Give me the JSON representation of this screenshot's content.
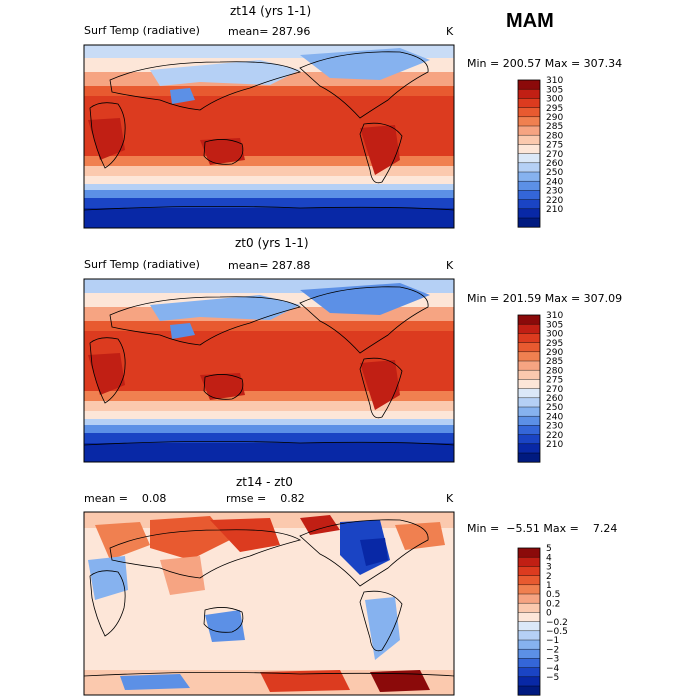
{
  "season": "MAM",
  "chart_data": [
    {
      "type": "heatmap",
      "title": "zt14 (yrs 1-1)",
      "field_label": "Surf Temp (radiative)",
      "mean_text": "mean= 287.96",
      "units": "K",
      "minmax_text": "Min = 200.57 Max = 307.34",
      "min": 200.57,
      "max": 307.34,
      "mean": 287.96,
      "colorbar_levels": [
        "310",
        "305",
        "300",
        "295",
        "290",
        "285",
        "280",
        "275",
        "270",
        "260",
        "250",
        "240",
        "230",
        "220",
        "210"
      ],
      "colorbar_colors": [
        "#8b0a0a",
        "#c11f14",
        "#dc3b1f",
        "#e85a30",
        "#f08050",
        "#f6a482",
        "#fbc9ae",
        "#fde6d8",
        "#dbe8f8",
        "#b5d0f5",
        "#86b2ef",
        "#5c90e6",
        "#3466d8",
        "#1a44c4",
        "#0828a6",
        "#001a80"
      ]
    },
    {
      "type": "heatmap",
      "title": "zt0 (yrs 1-1)",
      "field_label": "Surf Temp (radiative)",
      "mean_text": "mean= 287.88",
      "units": "K",
      "minmax_text": "Min = 201.59 Max = 307.09",
      "min": 201.59,
      "max": 307.09,
      "mean": 287.88,
      "colorbar_levels": [
        "310",
        "305",
        "300",
        "295",
        "290",
        "285",
        "280",
        "275",
        "270",
        "260",
        "250",
        "240",
        "230",
        "220",
        "210"
      ],
      "colorbar_colors": [
        "#8b0a0a",
        "#c11f14",
        "#dc3b1f",
        "#e85a30",
        "#f08050",
        "#f6a482",
        "#fbc9ae",
        "#fde6d8",
        "#dbe8f8",
        "#b5d0f5",
        "#86b2ef",
        "#5c90e6",
        "#3466d8",
        "#1a44c4",
        "#0828a6",
        "#001a80"
      ]
    },
    {
      "type": "heatmap",
      "title": "zt14 - zt0",
      "mean_text": "mean =    0.08",
      "rmse_text": "rmse =    0.82",
      "units": "K",
      "minmax_text": "Min =  −5.51 Max =    7.24",
      "min": -5.51,
      "max": 7.24,
      "mean": 0.08,
      "rmse": 0.82,
      "colorbar_levels": [
        "5",
        "4",
        "3",
        "2",
        "1",
        "0.5",
        "0.2",
        "0",
        "−0.2",
        "−0.5",
        "−1",
        "−2",
        "−3",
        "−4",
        "−5"
      ],
      "colorbar_colors": [
        "#8b0a0a",
        "#c11f14",
        "#dc3b1f",
        "#e85a30",
        "#f08050",
        "#f6a482",
        "#fbc9ae",
        "#fde6d8",
        "#dbe8f8",
        "#b5d0f5",
        "#86b2ef",
        "#5c90e6",
        "#3466d8",
        "#1a44c4",
        "#0828a6",
        "#001a80"
      ]
    }
  ]
}
